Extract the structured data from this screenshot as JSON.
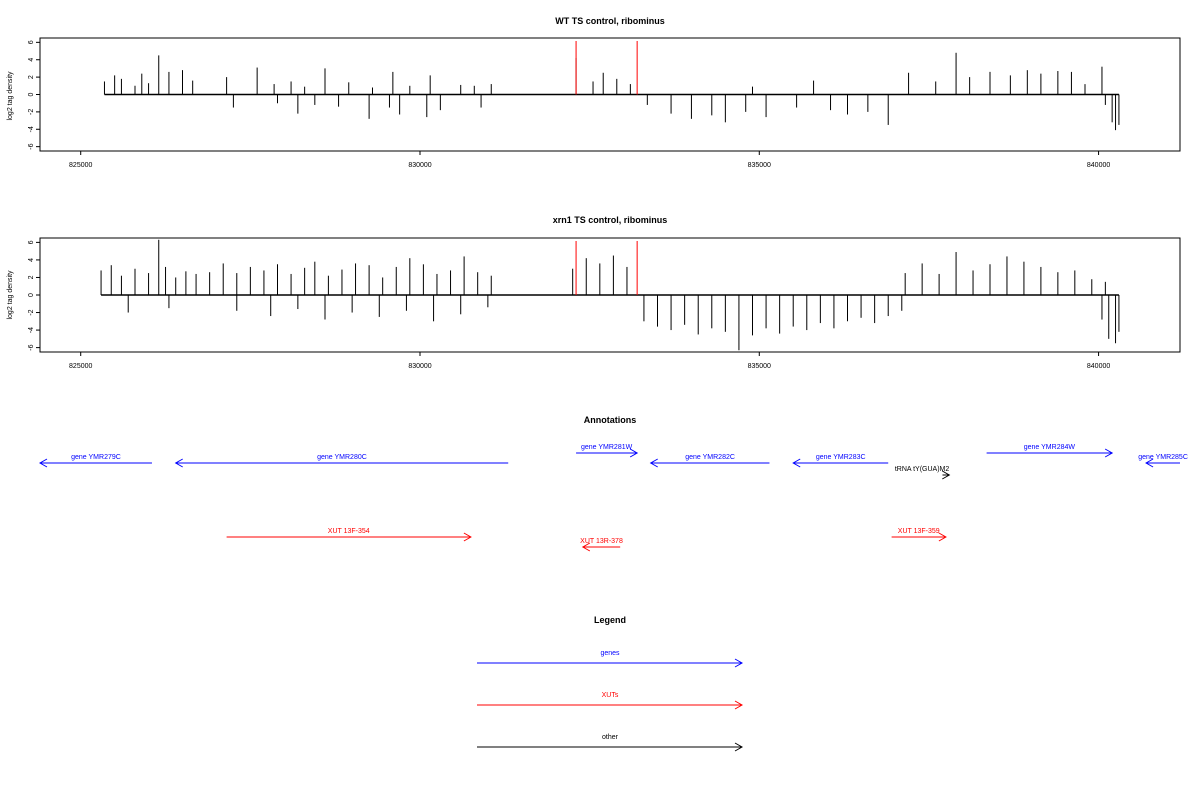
{
  "chart_data": [
    {
      "type": "bar",
      "title": "WT TS control, ribominus",
      "xlabel": "",
      "ylabel": "log2 tag density",
      "xlim": [
        824400,
        841200
      ],
      "ylim": [
        -6.5,
        6.5
      ],
      "xticks": [
        825000,
        830000,
        835000,
        840000
      ],
      "yticks": [
        -6,
        -4,
        -2,
        0,
        2,
        4,
        6
      ],
      "highlight_positions": [
        832300,
        833200
      ],
      "colors": {
        "bars": "#000000",
        "highlight": "#ff0000",
        "frame": "#000000"
      },
      "series": [
        {
          "strand": "plus",
          "x": [
            825350,
            825500,
            825600,
            825800,
            825900,
            826000,
            826150,
            826300,
            826500,
            826650,
            827150,
            827600,
            827850,
            828100,
            828300,
            828600,
            828950,
            829300,
            829600,
            829850,
            830150,
            830600,
            830800,
            831050,
            832300,
            832550,
            832700,
            832900,
            833100,
            834900,
            835800,
            837200,
            837600,
            837900,
            838100,
            838400,
            838700,
            838950,
            839150,
            839400,
            839600,
            839800,
            840050
          ],
          "y": [
            1.5,
            2.2,
            1.8,
            1.0,
            2.4,
            1.3,
            4.5,
            2.6,
            2.8,
            1.6,
            2.0,
            3.1,
            1.2,
            1.5,
            0.9,
            3.0,
            1.4,
            0.8,
            2.6,
            1.0,
            2.2,
            1.1,
            1.0,
            1.2,
            4.2,
            1.5,
            2.5,
            1.8,
            1.2,
            0.9,
            1.6,
            2.5,
            1.5,
            4.8,
            2.0,
            2.6,
            2.2,
            2.8,
            2.4,
            2.7,
            2.6,
            1.2,
            3.2
          ]
        },
        {
          "strand": "minus",
          "x": [
            827250,
            827900,
            828200,
            828450,
            828800,
            829250,
            829550,
            829700,
            830100,
            830300,
            830900,
            833350,
            833700,
            834000,
            834300,
            834500,
            834800,
            835100,
            835550,
            836050,
            836300,
            836600,
            836900,
            840100,
            840200,
            840250,
            840300
          ],
          "y": [
            -1.5,
            -1.0,
            -2.2,
            -1.2,
            -1.4,
            -2.8,
            -1.5,
            -2.3,
            -2.6,
            -1.8,
            -1.5,
            -1.2,
            -2.2,
            -2.8,
            -2.4,
            -3.2,
            -2.0,
            -2.6,
            -1.5,
            -1.8,
            -2.3,
            -2.0,
            -3.5,
            -1.2,
            -3.2,
            -4.1,
            -3.5
          ]
        }
      ]
    },
    {
      "type": "bar",
      "title": "xrn1 TS control, ribominus",
      "xlabel": "",
      "ylabel": "log2 tag density",
      "xlim": [
        824400,
        841200
      ],
      "ylim": [
        -6.5,
        6.5
      ],
      "xticks": [
        825000,
        830000,
        835000,
        840000
      ],
      "yticks": [
        -6,
        -4,
        -2,
        0,
        2,
        4,
        6
      ],
      "highlight_positions": [
        832300,
        833200
      ],
      "colors": {
        "bars": "#000000",
        "highlight": "#ff0000",
        "frame": "#000000"
      },
      "series": [
        {
          "strand": "plus",
          "x": [
            825300,
            825450,
            825600,
            825800,
            826000,
            826150,
            826250,
            826400,
            826550,
            826700,
            826900,
            827100,
            827300,
            827500,
            827700,
            827900,
            828100,
            828300,
            828450,
            828650,
            828850,
            829050,
            829250,
            829450,
            829650,
            829850,
            830050,
            830250,
            830450,
            830650,
            830850,
            831050,
            832250,
            832450,
            832650,
            832850,
            833050,
            837150,
            837400,
            837650,
            837900,
            838150,
            838400,
            838650,
            838900,
            839150,
            839400,
            839650,
            839900,
            840100
          ],
          "y": [
            2.8,
            3.4,
            2.2,
            3.0,
            2.5,
            6.3,
            3.2,
            2.0,
            2.7,
            2.4,
            2.6,
            3.6,
            2.5,
            3.2,
            2.8,
            3.5,
            2.4,
            3.1,
            3.8,
            2.2,
            2.9,
            3.6,
            3.4,
            2.0,
            3.2,
            4.2,
            3.5,
            2.4,
            2.8,
            4.4,
            2.6,
            2.2,
            3.0,
            4.2,
            3.6,
            4.5,
            3.2,
            2.5,
            3.6,
            2.4,
            4.9,
            2.8,
            3.5,
            4.4,
            3.8,
            3.2,
            2.6,
            2.8,
            1.8,
            1.5
          ]
        },
        {
          "strand": "minus",
          "x": [
            825700,
            826300,
            827300,
            827800,
            828200,
            828600,
            829000,
            829400,
            829800,
            830200,
            830600,
            831000,
            833300,
            833500,
            833700,
            833900,
            834100,
            834300,
            834500,
            834700,
            834900,
            835100,
            835300,
            835500,
            835700,
            835900,
            836100,
            836300,
            836500,
            836700,
            836900,
            837100,
            840050,
            840150,
            840250,
            840300
          ],
          "y": [
            -2.0,
            -1.5,
            -1.8,
            -2.4,
            -1.6,
            -2.8,
            -2.0,
            -2.5,
            -1.8,
            -3.0,
            -2.2,
            -1.4,
            -3.0,
            -3.6,
            -4.0,
            -3.4,
            -4.5,
            -3.8,
            -4.2,
            -6.3,
            -4.6,
            -3.8,
            -4.4,
            -3.6,
            -4.0,
            -3.2,
            -3.8,
            -3.0,
            -2.6,
            -3.2,
            -2.4,
            -1.8,
            -2.8,
            -5.0,
            -5.5,
            -4.2
          ]
        }
      ]
    }
  ],
  "annotations": {
    "title": "Annotations",
    "items": [
      {
        "label": "gene YMR279C",
        "start": 824400,
        "end": 826050,
        "direction": "reverse",
        "row": 1,
        "color": "#0000ff"
      },
      {
        "label": "gene YMR280C",
        "start": 826400,
        "end": 831300,
        "direction": "reverse",
        "row": 1,
        "color": "#0000ff"
      },
      {
        "label": "gene YMR281W",
        "start": 832300,
        "end": 833200,
        "direction": "forward",
        "row": 0,
        "color": "#0000ff"
      },
      {
        "label": "gene YMR282C",
        "start": 833400,
        "end": 835150,
        "direction": "reverse",
        "row": 1,
        "color": "#0000ff"
      },
      {
        "label": "gene YMR283C",
        "start": 835500,
        "end": 836900,
        "direction": "reverse",
        "row": 1,
        "color": "#0000ff"
      },
      {
        "label": "gene YMR284W",
        "start": 838350,
        "end": 840200,
        "direction": "forward",
        "row": 0,
        "color": "#0000ff"
      },
      {
        "label": "gene YMR285C",
        "start": 840700,
        "end": 841200,
        "direction": "reverse",
        "row": 1,
        "color": "#0000ff"
      },
      {
        "label": "tRNA tY(GUA)M2",
        "start": 837700,
        "end": 837800,
        "direction": "forward",
        "row": 2,
        "color": "#000000"
      },
      {
        "label": "XUT 13F-354",
        "start": 827150,
        "end": 830750,
        "direction": "forward",
        "row": 3,
        "color": "#ff0000"
      },
      {
        "label": "XUT 13R-378",
        "start": 832400,
        "end": 832950,
        "direction": "reverse",
        "row": 4,
        "color": "#ff0000"
      },
      {
        "label": "XUT 13F-359",
        "start": 836950,
        "end": 837750,
        "direction": "forward",
        "row": 3,
        "color": "#ff0000"
      }
    ]
  },
  "legend": {
    "title": "Legend",
    "items": [
      {
        "label": "genes",
        "color": "#0000ff"
      },
      {
        "label": "XUTs",
        "color": "#ff0000"
      },
      {
        "label": "other",
        "color": "#000000"
      }
    ]
  }
}
